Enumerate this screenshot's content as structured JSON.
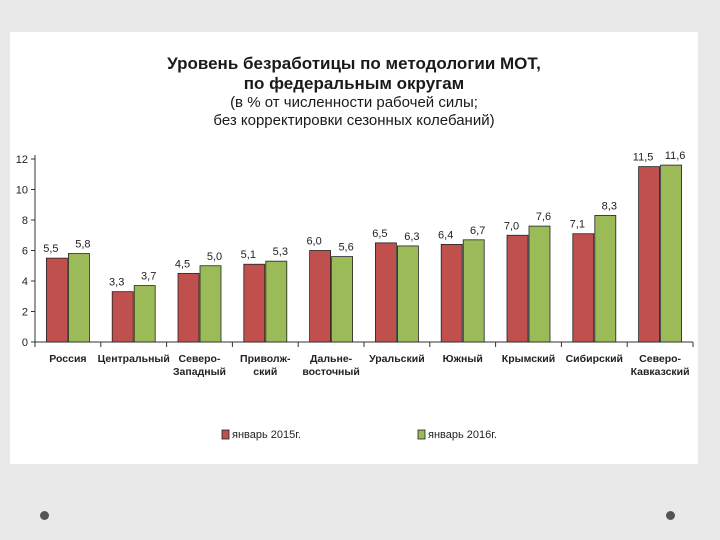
{
  "chart_data": {
    "type": "bar",
    "title_lines": [
      "Уровень безработицы по методологии МОТ,",
      "по федеральным округам"
    ],
    "subtitle_lines": [
      "(в % от численности рабочей силы;",
      "без корректировки сезонных колебаний)"
    ],
    "categories": [
      [
        "Россия"
      ],
      [
        "Центральный"
      ],
      [
        "Северо-",
        "Западный"
      ],
      [
        "Приволж-",
        "ский"
      ],
      [
        "Дальне-",
        "восточный"
      ],
      [
        "Уральский"
      ],
      [
        "Южный"
      ],
      [
        "Крымский"
      ],
      [
        "Сибирский"
      ],
      [
        "Северо-",
        "Кавказский"
      ]
    ],
    "series": [
      {
        "name": "январь 2015г.",
        "color": "#c0504d",
        "values": [
          5.5,
          3.3,
          4.5,
          5.1,
          6.0,
          6.5,
          6.4,
          7.0,
          7.1,
          11.5
        ],
        "labels": [
          "5,5",
          "3,3",
          "4,5",
          "5,1",
          "6,0",
          "6,5",
          "6,4",
          "7,0",
          "7,1",
          "11,5"
        ]
      },
      {
        "name": "январь 2016г.",
        "color": "#9bbb59",
        "values": [
          5.8,
          3.7,
          5.0,
          5.3,
          5.6,
          6.3,
          6.7,
          7.6,
          8.3,
          11.6
        ],
        "labels": [
          "5,8",
          "3,7",
          "5,0",
          "5,3",
          "5,6",
          "6,3",
          "6,7",
          "7,6",
          "8,3",
          "11,6"
        ]
      }
    ],
    "yticks": [
      "0",
      "2",
      "4",
      "6",
      "8",
      "10",
      "12"
    ],
    "ylim": [
      0,
      12
    ],
    "grid": false,
    "legend_position": "bottom"
  }
}
